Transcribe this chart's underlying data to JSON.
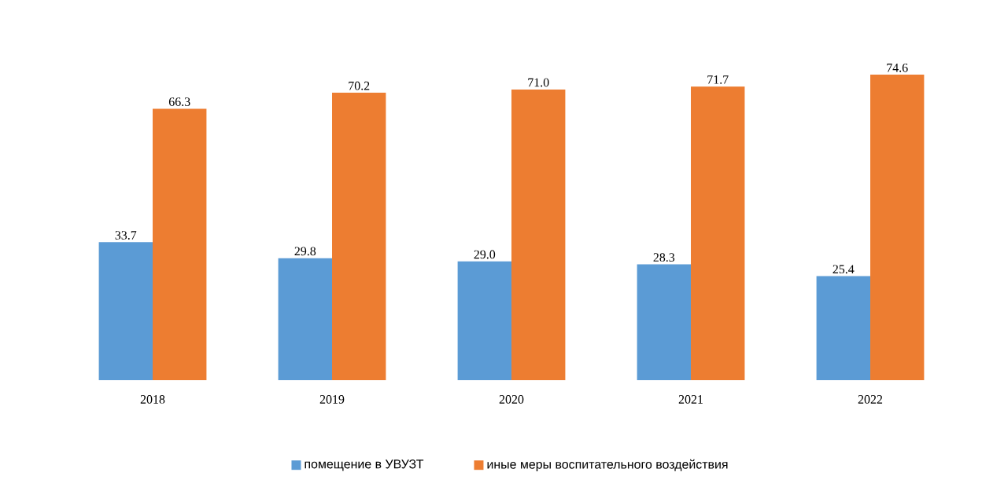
{
  "chart_data": {
    "type": "bar",
    "categories": [
      "2018",
      "2019",
      "2020",
      "2021",
      "2022"
    ],
    "series": [
      {
        "name": "помещение в УВУЗТ",
        "color": "#5b9bd5",
        "values": [
          33.7,
          29.8,
          29.0,
          28.3,
          25.4
        ],
        "value_labels": [
          "33.7",
          "29.8",
          "29.0",
          "28.3",
          "25.4"
        ]
      },
      {
        "name": "иные меры воспитательного  воздействия",
        "color": "#ed7d31",
        "values": [
          66.3,
          70.2,
          71.0,
          71.7,
          74.6
        ],
        "value_labels": [
          "66.3",
          "70.2",
          "71.0",
          "71.7",
          "74.6"
        ]
      }
    ],
    "tick_labels": "x",
    "grid": false,
    "legend": "bottom"
  }
}
